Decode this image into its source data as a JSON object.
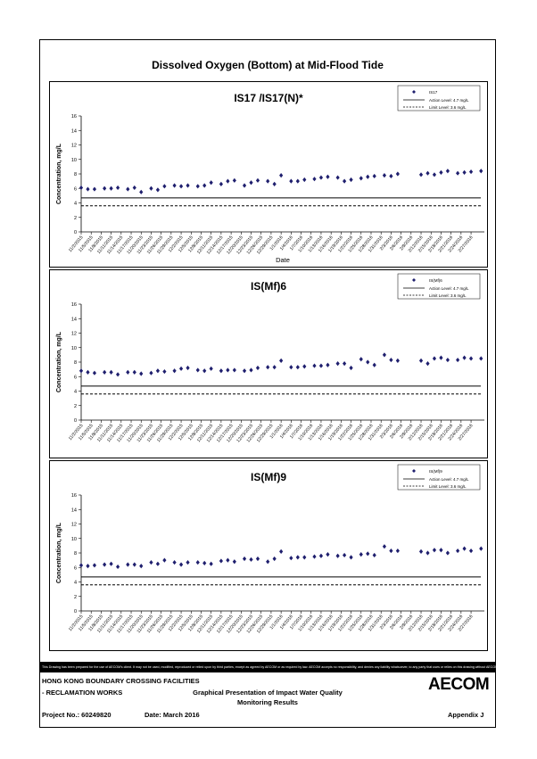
{
  "page": {
    "title": "Dissolved Oxygen (Bottom) at Mid-Flood Tide",
    "disclaimer": "This Drawing has been prepared for the use of AECOM's client. It may not be used, modified, reproduced or relied upon by third parties, except as agreed by AECOM or as required by law. AECOM accepts no responsibility, and denies any liability whatsoever, to any party that uses or relies on this drawing without AECOM's express written consent.",
    "footer": {
      "org_line1": "HONG KONG BOUNDARY CROSSING FACILITIES",
      "org_line2": "- RECLAMATION WORKS",
      "doc_title_line1": "Graphical Presentation of Impact Water Quality",
      "doc_title_line2": "Monitoring Results",
      "project": "Project No.: 60249820",
      "date": "Date: March 2016",
      "appendix": "Appendix J",
      "logo": "AECOM"
    }
  },
  "chart_data": [
    {
      "type": "scatter",
      "title": "IS17 /IS17(N)*",
      "xlabel": "Date",
      "ylabel": "Concentration, mg/L",
      "ylim": [
        0,
        16
      ],
      "yticks": [
        0,
        2,
        4,
        6,
        8,
        10,
        12,
        14,
        16
      ],
      "xlim": [
        "2015-11-02",
        "2016-03-02"
      ],
      "xticks": [
        "11/2/2015",
        "11/5/2015",
        "11/8/2015",
        "11/11/2015",
        "11/14/2015",
        "11/17/2015",
        "11/20/2015",
        "11/23/2015",
        "11/26/2015",
        "11/29/2015",
        "12/2/2015",
        "12/5/2015",
        "12/8/2015",
        "12/11/2015",
        "12/14/2015",
        "12/17/2015",
        "12/20/2015",
        "12/23/2015",
        "12/26/2015",
        "12/29/2015",
        "1/1/2016",
        "1/4/2016",
        "1/7/2016",
        "1/10/2016",
        "1/13/2016",
        "1/16/2016",
        "1/19/2016",
        "1/22/2016",
        "1/25/2016",
        "1/28/2016",
        "1/31/2016",
        "2/3/2016",
        "2/6/2016",
        "2/9/2016",
        "2/12/2016",
        "2/15/2016",
        "2/18/2016",
        "2/21/2016",
        "2/24/2016",
        "2/27/2016"
      ],
      "legend_position": "top-right",
      "series": [
        {
          "name": "IS17",
          "marker": "diamond",
          "color": "#1f1f6e",
          "x": [
            "2015-11-02",
            "2015-11-04",
            "2015-11-06",
            "2015-11-09",
            "2015-11-11",
            "2015-11-13",
            "2015-11-16",
            "2015-11-18",
            "2015-11-20",
            "2015-11-23",
            "2015-11-25",
            "2015-11-27",
            "2015-11-30",
            "2015-12-02",
            "2015-12-04",
            "2015-12-07",
            "2015-12-09",
            "2015-12-11",
            "2015-12-14",
            "2015-12-16",
            "2015-12-18",
            "2015-12-21",
            "2015-12-23",
            "2015-12-25",
            "2015-12-28",
            "2015-12-30",
            "2016-01-01",
            "2016-01-04",
            "2016-01-06",
            "2016-01-08",
            "2016-01-11",
            "2016-01-13",
            "2016-01-15",
            "2016-01-18",
            "2016-01-20",
            "2016-01-22",
            "2016-01-25",
            "2016-01-27",
            "2016-01-29",
            "2016-02-01",
            "2016-02-03",
            "2016-02-05",
            "2016-02-12",
            "2016-02-14",
            "2016-02-16",
            "2016-02-18",
            "2016-02-20",
            "2016-02-23",
            "2016-02-25",
            "2016-02-27",
            "2016-03-01"
          ],
          "y": [
            6.1,
            5.9,
            5.9,
            6.0,
            6.0,
            6.1,
            5.9,
            6.1,
            5.5,
            6.0,
            5.8,
            6.3,
            6.4,
            6.3,
            6.4,
            6.3,
            6.4,
            6.8,
            6.6,
            7.0,
            7.1,
            6.4,
            6.8,
            7.1,
            7.0,
            6.6,
            7.8,
            7.0,
            7.0,
            7.2,
            7.3,
            7.5,
            7.6,
            7.5,
            7.0,
            7.2,
            7.4,
            7.6,
            7.7,
            7.8,
            7.7,
            8.0,
            7.9,
            8.1,
            7.9,
            8.2,
            8.4,
            8.1,
            8.2,
            8.3,
            8.4
          ]
        }
      ],
      "reference_lines": [
        {
          "name": "Action Level: 4.7 mg/L",
          "value": 4.7,
          "style": "solid"
        },
        {
          "name": "Limit Level: 3.6 mg/L",
          "value": 3.6,
          "style": "dashed"
        }
      ]
    },
    {
      "type": "scatter",
      "title": "IS(Mf)6",
      "xlabel": "",
      "ylabel": "Concentration, mg/L",
      "ylim": [
        0,
        16
      ],
      "yticks": [
        0,
        2,
        4,
        6,
        8,
        10,
        12,
        14,
        16
      ],
      "xlim": [
        "2015-11-02",
        "2016-03-02"
      ],
      "xticks": [
        "11/2/2015",
        "11/5/2015",
        "11/8/2015",
        "11/11/2015",
        "11/14/2015",
        "11/17/2015",
        "11/20/2015",
        "11/23/2015",
        "11/26/2015",
        "11/29/2015",
        "12/2/2015",
        "12/5/2015",
        "12/8/2015",
        "12/11/2015",
        "12/14/2015",
        "12/17/2015",
        "12/20/2015",
        "12/23/2015",
        "12/26/2015",
        "12/29/2015",
        "1/1/2016",
        "1/4/2016",
        "1/7/2016",
        "1/10/2016",
        "1/13/2016",
        "1/16/2016",
        "1/19/2016",
        "1/22/2016",
        "1/25/2016",
        "1/28/2016",
        "1/31/2016",
        "2/3/2016",
        "2/6/2016",
        "2/9/2016",
        "2/12/2016",
        "2/15/2016",
        "2/18/2016",
        "2/21/2016",
        "2/24/2016",
        "2/27/2016"
      ],
      "legend_position": "top-right",
      "series": [
        {
          "name": "IS(Mf)6",
          "marker": "diamond",
          "color": "#1f1f6e",
          "x": [
            "2015-11-02",
            "2015-11-04",
            "2015-11-06",
            "2015-11-09",
            "2015-11-11",
            "2015-11-13",
            "2015-11-16",
            "2015-11-18",
            "2015-11-20",
            "2015-11-23",
            "2015-11-25",
            "2015-11-27",
            "2015-11-30",
            "2015-12-02",
            "2015-12-04",
            "2015-12-07",
            "2015-12-09",
            "2015-12-11",
            "2015-12-14",
            "2015-12-16",
            "2015-12-18",
            "2015-12-21",
            "2015-12-23",
            "2015-12-25",
            "2015-12-28",
            "2015-12-30",
            "2016-01-01",
            "2016-01-04",
            "2016-01-06",
            "2016-01-08",
            "2016-01-11",
            "2016-01-13",
            "2016-01-15",
            "2016-01-18",
            "2016-01-20",
            "2016-01-22",
            "2016-01-25",
            "2016-01-27",
            "2016-01-29",
            "2016-02-01",
            "2016-02-03",
            "2016-02-05",
            "2016-02-12",
            "2016-02-14",
            "2016-02-16",
            "2016-02-18",
            "2016-02-20",
            "2016-02-23",
            "2016-02-25",
            "2016-02-27",
            "2016-03-01"
          ],
          "y": [
            6.8,
            6.6,
            6.5,
            6.6,
            6.6,
            6.3,
            6.6,
            6.6,
            6.4,
            6.5,
            6.8,
            6.7,
            6.8,
            7.1,
            7.2,
            6.9,
            6.8,
            7.1,
            6.8,
            6.9,
            6.9,
            6.8,
            6.9,
            7.2,
            7.3,
            7.3,
            8.2,
            7.3,
            7.3,
            7.4,
            7.5,
            7.5,
            7.6,
            7.8,
            7.8,
            7.2,
            8.4,
            8.0,
            7.6,
            9.0,
            8.3,
            8.2,
            8.2,
            7.8,
            8.5,
            8.6,
            8.3,
            8.3,
            8.6,
            8.5,
            8.5
          ]
        }
      ],
      "reference_lines": [
        {
          "name": "Action Level: 4.7 mg/L",
          "value": 4.7,
          "style": "solid"
        },
        {
          "name": "Limit Level: 3.6 mg/L",
          "value": 3.6,
          "style": "dashed"
        }
      ]
    },
    {
      "type": "scatter",
      "title": "IS(Mf)9",
      "xlabel": "",
      "ylabel": "Concentration, mg/L",
      "ylim": [
        0,
        16
      ],
      "yticks": [
        0,
        2,
        4,
        6,
        8,
        10,
        12,
        14,
        16
      ],
      "xlim": [
        "2015-11-02",
        "2016-03-02"
      ],
      "xticks": [
        "11/2/2015",
        "11/5/2015",
        "11/8/2015",
        "11/11/2015",
        "11/14/2015",
        "11/17/2015",
        "11/20/2015",
        "11/23/2015",
        "11/26/2015",
        "11/29/2015",
        "12/2/2015",
        "12/5/2015",
        "12/8/2015",
        "12/11/2015",
        "12/14/2015",
        "12/17/2015",
        "12/20/2015",
        "12/23/2015",
        "12/26/2015",
        "12/29/2015",
        "1/1/2016",
        "1/4/2016",
        "1/7/2016",
        "1/10/2016",
        "1/13/2016",
        "1/16/2016",
        "1/19/2016",
        "1/22/2016",
        "1/25/2016",
        "1/28/2016",
        "1/31/2016",
        "2/3/2016",
        "2/6/2016",
        "2/9/2016",
        "2/12/2016",
        "2/15/2016",
        "2/18/2016",
        "2/21/2016",
        "2/24/2016",
        "2/27/2016"
      ],
      "legend_position": "top-right",
      "series": [
        {
          "name": "IS(Mf)9",
          "marker": "diamond",
          "color": "#1f1f6e",
          "x": [
            "2015-11-02",
            "2015-11-04",
            "2015-11-06",
            "2015-11-09",
            "2015-11-11",
            "2015-11-13",
            "2015-11-16",
            "2015-11-18",
            "2015-11-20",
            "2015-11-23",
            "2015-11-25",
            "2015-11-27",
            "2015-11-30",
            "2015-12-02",
            "2015-12-04",
            "2015-12-07",
            "2015-12-09",
            "2015-12-11",
            "2015-12-14",
            "2015-12-16",
            "2015-12-18",
            "2015-12-21",
            "2015-12-23",
            "2015-12-25",
            "2015-12-28",
            "2015-12-30",
            "2016-01-01",
            "2016-01-04",
            "2016-01-06",
            "2016-01-08",
            "2016-01-11",
            "2016-01-13",
            "2016-01-15",
            "2016-01-18",
            "2016-01-20",
            "2016-01-22",
            "2016-01-25",
            "2016-01-27",
            "2016-01-29",
            "2016-02-01",
            "2016-02-03",
            "2016-02-05",
            "2016-02-12",
            "2016-02-14",
            "2016-02-16",
            "2016-02-18",
            "2016-02-20",
            "2016-02-23",
            "2016-02-25",
            "2016-02-27",
            "2016-03-01"
          ],
          "y": [
            6.3,
            6.2,
            6.3,
            6.4,
            6.5,
            6.1,
            6.4,
            6.4,
            6.2,
            6.7,
            6.5,
            7.0,
            6.7,
            6.4,
            6.7,
            6.7,
            6.6,
            6.5,
            6.9,
            7.0,
            6.8,
            7.2,
            7.1,
            7.2,
            6.8,
            7.2,
            8.2,
            7.3,
            7.4,
            7.4,
            7.5,
            7.6,
            7.8,
            7.6,
            7.7,
            7.4,
            7.8,
            7.9,
            7.7,
            8.9,
            8.3,
            8.3,
            8.2,
            8.0,
            8.4,
            8.4,
            8.0,
            8.3,
            8.6,
            8.3,
            8.6
          ]
        }
      ],
      "reference_lines": [
        {
          "name": "Action Level: 4.7 mg/L",
          "value": 4.7,
          "style": "solid"
        },
        {
          "name": "Limit Level: 3.6 mg/L",
          "value": 3.6,
          "style": "dashed"
        }
      ]
    }
  ]
}
